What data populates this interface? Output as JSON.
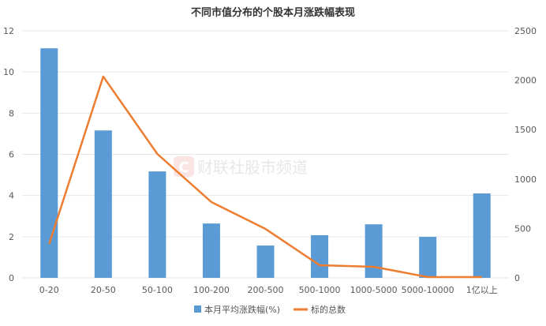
{
  "chart_data": {
    "type": "bar+line",
    "title": "不同市值分布的个股本月涨跌幅表现",
    "categories": [
      "0-20",
      "20-50",
      "50-100",
      "100-200",
      "200-500",
      "500-1000",
      "1000-5000",
      "5000-10000",
      "1亿以上"
    ],
    "series": [
      {
        "name": "本月平均涨跌幅(%)",
        "type": "bar",
        "axis": "left",
        "color": "#5b9bd5",
        "values": [
          11.15,
          7.16,
          5.17,
          2.64,
          1.57,
          2.07,
          2.6,
          1.99,
          4.1
        ]
      },
      {
        "name": "标的总数",
        "type": "line",
        "axis": "right",
        "color": "#ed7d31",
        "values": [
          343,
          2037,
          1254,
          767,
          495,
          128,
          112,
          8,
          8
        ]
      }
    ],
    "y_left": {
      "range": [
        0,
        12
      ],
      "ticks": [
        "0",
        "2",
        "4",
        "6",
        "8",
        "10",
        "12"
      ]
    },
    "y_right": {
      "range": [
        0,
        2500
      ],
      "ticks": [
        "0",
        "500",
        "1000",
        "1500",
        "2000",
        "2500"
      ]
    },
    "grid": true,
    "legend": "bottom"
  },
  "watermark": "财联社股市频道"
}
